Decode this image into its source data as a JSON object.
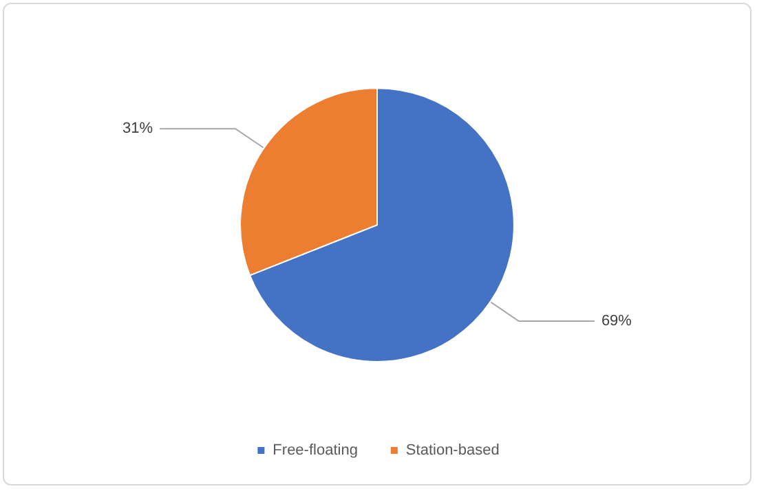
{
  "chart_data": {
    "type": "pie",
    "categories": [
      "Free-floating",
      "Station-based"
    ],
    "values": [
      69,
      31
    ],
    "colors": [
      "#4472c4",
      "#ed7d31"
    ],
    "value_labels": [
      "69%",
      "31%"
    ],
    "legend": "bottom"
  }
}
